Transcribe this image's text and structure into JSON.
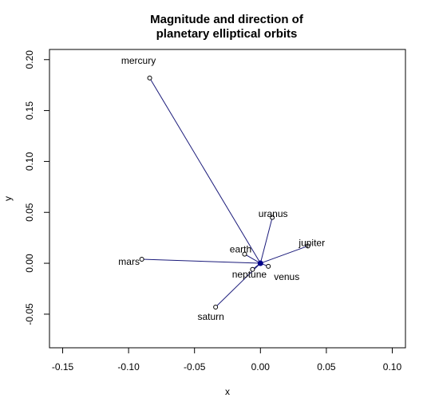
{
  "chart_data": {
    "type": "scatter",
    "title": "Magnitude and direction of\nplanetary elliptical orbits",
    "title_lines": [
      "Magnitude and direction of",
      "planetary elliptical orbits"
    ],
    "xlabel": "x",
    "ylabel": "y",
    "xlim": [
      -0.16,
      0.11
    ],
    "ylim": [
      -0.083,
      0.21
    ],
    "x_ticks": [
      -0.15,
      -0.1,
      -0.05,
      0.0,
      0.05,
      0.1
    ],
    "x_tick_labels": [
      "-0.15",
      "-0.10",
      "-0.05",
      "0.00",
      "0.05",
      "0.10"
    ],
    "y_ticks": [
      -0.05,
      0.0,
      0.05,
      0.1,
      0.15,
      0.2
    ],
    "y_tick_labels": [
      "-0.05",
      "0.00",
      "0.05",
      "0.10",
      "0.15",
      "0.20"
    ],
    "origin": {
      "x": 0.0,
      "y": 0.0
    },
    "line_color": "#1a1a7a",
    "origin_color": "#00008b",
    "grid": false,
    "points": [
      {
        "name": "mercury",
        "x": -0.084,
        "y": 0.182
      },
      {
        "name": "venus",
        "x": 0.006,
        "y": -0.003
      },
      {
        "name": "earth",
        "x": -0.012,
        "y": 0.009
      },
      {
        "name": "mars",
        "x": -0.09,
        "y": 0.004
      },
      {
        "name": "jupiter",
        "x": 0.036,
        "y": 0.017
      },
      {
        "name": "saturn",
        "x": -0.034,
        "y": -0.043
      },
      {
        "name": "uranus",
        "x": 0.009,
        "y": 0.045
      },
      {
        "name": "neptune",
        "x": -0.006,
        "y": -0.006
      }
    ]
  }
}
